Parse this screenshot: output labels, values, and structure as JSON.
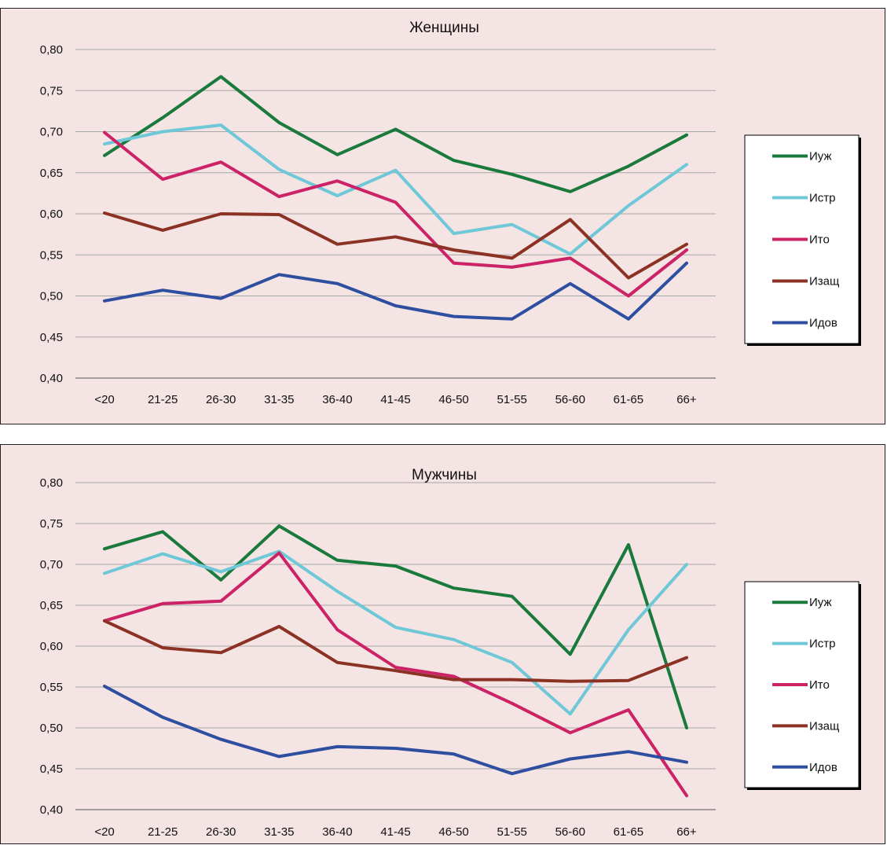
{
  "chart_data": [
    {
      "type": "line",
      "title": "Женщины",
      "categories": [
        "<20",
        "21-25",
        "26-30",
        "31-35",
        "36-40",
        "41-45",
        "46-50",
        "51-55",
        "56-60",
        "61-65",
        "66+"
      ],
      "ylim": [
        0.4,
        0.8
      ],
      "yticks": [
        "0,40",
        "0,45",
        "0,50",
        "0,55",
        "0,60",
        "0,65",
        "0,70",
        "0,75",
        "0,80"
      ],
      "grid": true,
      "legend_position": "right",
      "series": [
        {
          "name": "Иуж",
          "color": "#1a7a3c",
          "values": [
            0.671,
            0.717,
            0.767,
            0.711,
            0.672,
            0.703,
            0.665,
            0.648,
            0.627,
            0.658,
            0.696
          ]
        },
        {
          "name": "Истр",
          "color": "#6fc8d8",
          "values": [
            0.685,
            0.7,
            0.708,
            0.654,
            0.622,
            0.653,
            0.576,
            0.587,
            0.551,
            0.61,
            0.66
          ]
        },
        {
          "name": "Ито",
          "color": "#cc2266",
          "values": [
            0.699,
            0.642,
            0.663,
            0.621,
            0.64,
            0.614,
            0.54,
            0.535,
            0.546,
            0.5,
            0.556
          ]
        },
        {
          "name": "Изащ",
          "color": "#8c3224",
          "values": [
            0.601,
            0.58,
            0.6,
            0.599,
            0.563,
            0.572,
            0.556,
            0.546,
            0.593,
            0.522,
            0.563
          ]
        },
        {
          "name": "Идов",
          "color": "#2e4fa0",
          "values": [
            0.494,
            0.507,
            0.497,
            0.526,
            0.515,
            0.488,
            0.475,
            0.472,
            0.515,
            0.472,
            0.54
          ]
        }
      ]
    },
    {
      "type": "line",
      "title": "Мужчины",
      "categories": [
        "<20",
        "21-25",
        "26-30",
        "31-35",
        "36-40",
        "41-45",
        "46-50",
        "51-55",
        "56-60",
        "61-65",
        "66+"
      ],
      "ylim": [
        0.4,
        0.8
      ],
      "yticks": [
        "0,40",
        "0,45",
        "0,50",
        "0,55",
        "0,60",
        "0,65",
        "0,70",
        "0,75",
        "0,80"
      ],
      "grid": true,
      "legend_position": "right",
      "series": [
        {
          "name": "Иуж",
          "color": "#1a7a3c",
          "values": [
            0.719,
            0.74,
            0.681,
            0.747,
            0.705,
            0.698,
            0.671,
            0.661,
            0.59,
            0.724,
            0.5
          ]
        },
        {
          "name": "Истр",
          "color": "#6fc8d8",
          "values": [
            0.689,
            0.713,
            0.691,
            0.716,
            0.667,
            0.623,
            0.608,
            0.58,
            0.517,
            0.62,
            0.7
          ]
        },
        {
          "name": "Ито",
          "color": "#cc2266",
          "values": [
            0.631,
            0.652,
            0.655,
            0.714,
            0.62,
            0.574,
            0.563,
            0.53,
            0.494,
            0.522,
            0.417
          ]
        },
        {
          "name": "Изащ",
          "color": "#8c3224",
          "values": [
            0.631,
            0.598,
            0.592,
            0.624,
            0.58,
            0.57,
            0.559,
            0.559,
            0.557,
            0.558,
            0.586
          ]
        },
        {
          "name": "Идов",
          "color": "#2e4fa0",
          "values": [
            0.551,
            0.513,
            0.486,
            0.465,
            0.477,
            0.475,
            0.468,
            0.444,
            0.462,
            0.471,
            0.458
          ]
        }
      ]
    }
  ]
}
